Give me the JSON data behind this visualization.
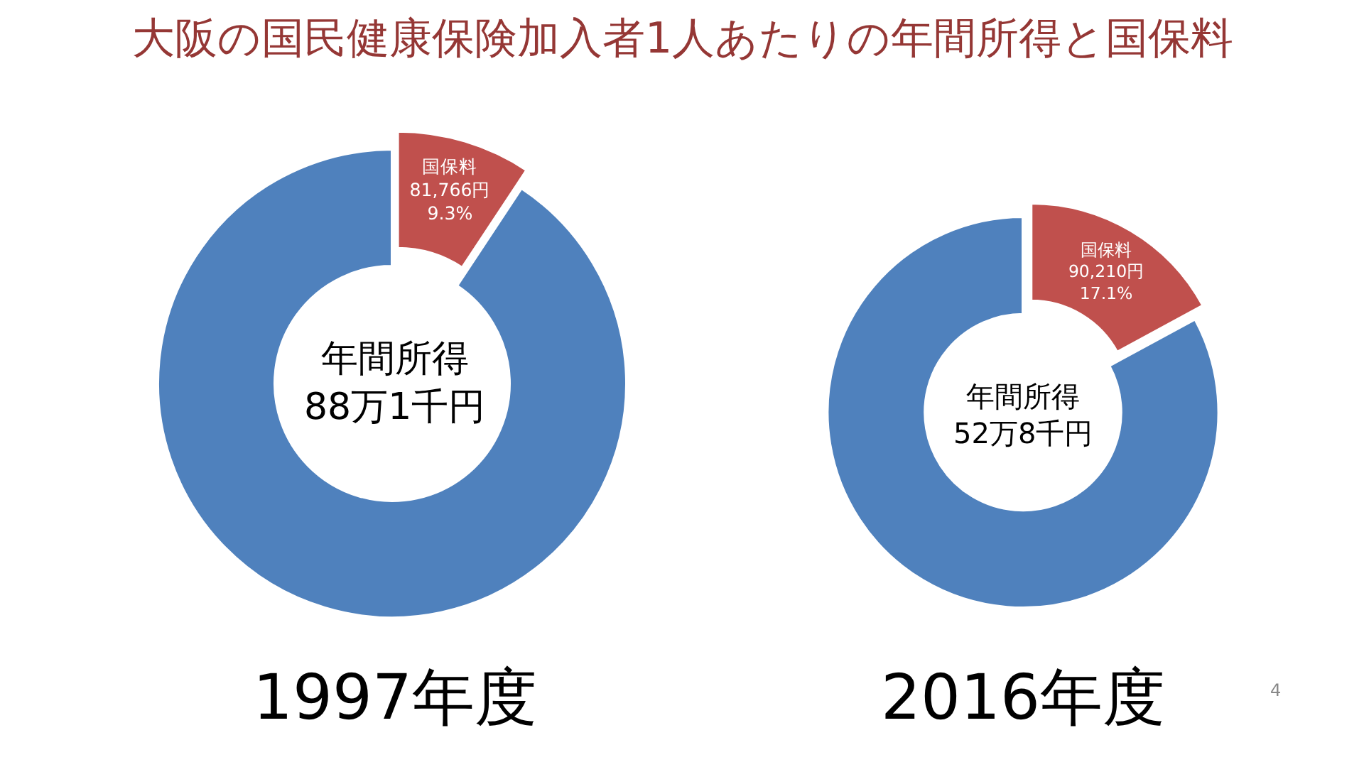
{
  "chart_data": [
    {
      "type": "donut",
      "title": "大阪の国民健康保険加入者1人あたりの年間所得と国保料",
      "categories": [
        "国保料",
        null
      ],
      "values": [
        9.3,
        90.7
      ],
      "colors": [
        "#c0504d",
        "#4f81bd"
      ],
      "value_labels": [
        "81,766円\n9.3%",
        null
      ],
      "annotations": [
        "年間所得\n88万1千円",
        "1997年度"
      ]
    },
    {
      "type": "donut",
      "categories": [
        "国保料",
        null
      ],
      "values": [
        17.1,
        82.9
      ],
      "colors": [
        "#c0504d",
        "#4f81bd"
      ],
      "value_labels": [
        "90,210円\n17.1%",
        null
      ],
      "annotations": [
        "年間所得\n52万8千円",
        "2016年度",
        "4"
      ]
    }
  ]
}
